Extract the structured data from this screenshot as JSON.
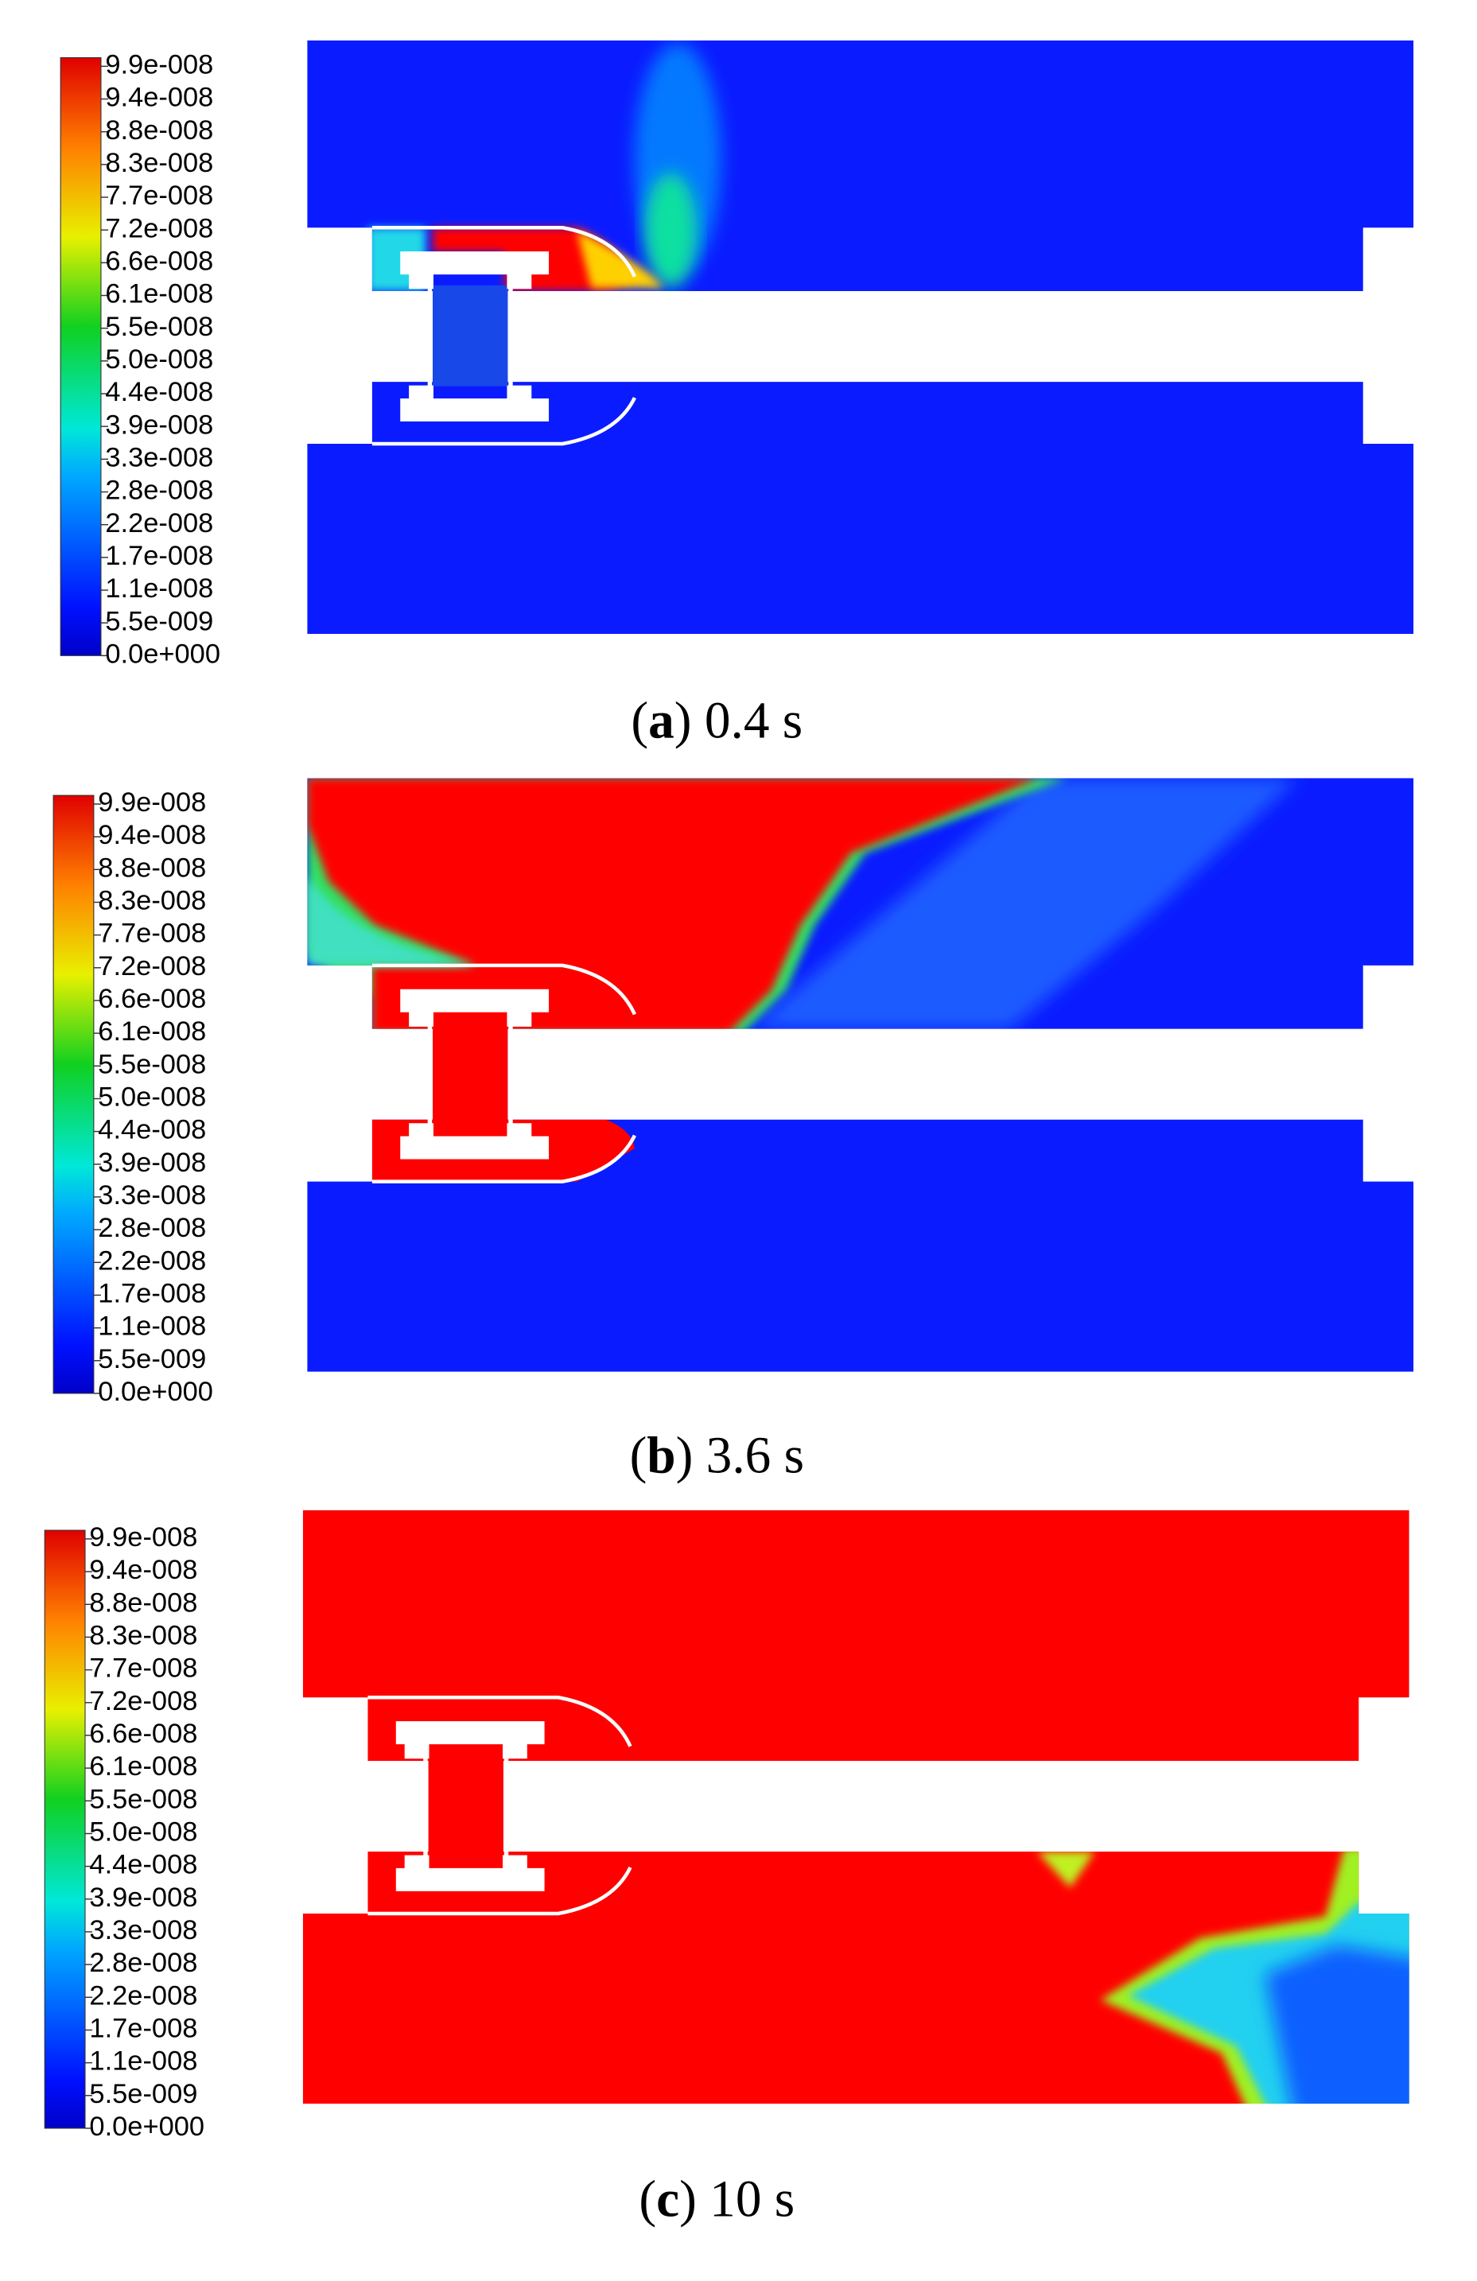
{
  "colorbar": {
    "labels": [
      "9.9e-008",
      "9.4e-008",
      "8.8e-008",
      "8.3e-008",
      "7.7e-008",
      "7.2e-008",
      "6.6e-008",
      "6.1e-008",
      "5.5e-008",
      "5.0e-008",
      "4.4e-008",
      "3.9e-008",
      "3.3e-008",
      "2.8e-008",
      "2.2e-008",
      "1.7e-008",
      "1.1e-008",
      "5.5e-009",
      "0.0e+000"
    ]
  },
  "panels": [
    {
      "caption": [
        "(",
        "a",
        ") 0.4 s"
      ]
    },
    {
      "caption": [
        "(",
        "b",
        ") 3.6 s"
      ]
    },
    {
      "caption": [
        "(",
        "c",
        ") 10 s"
      ]
    }
  ]
}
